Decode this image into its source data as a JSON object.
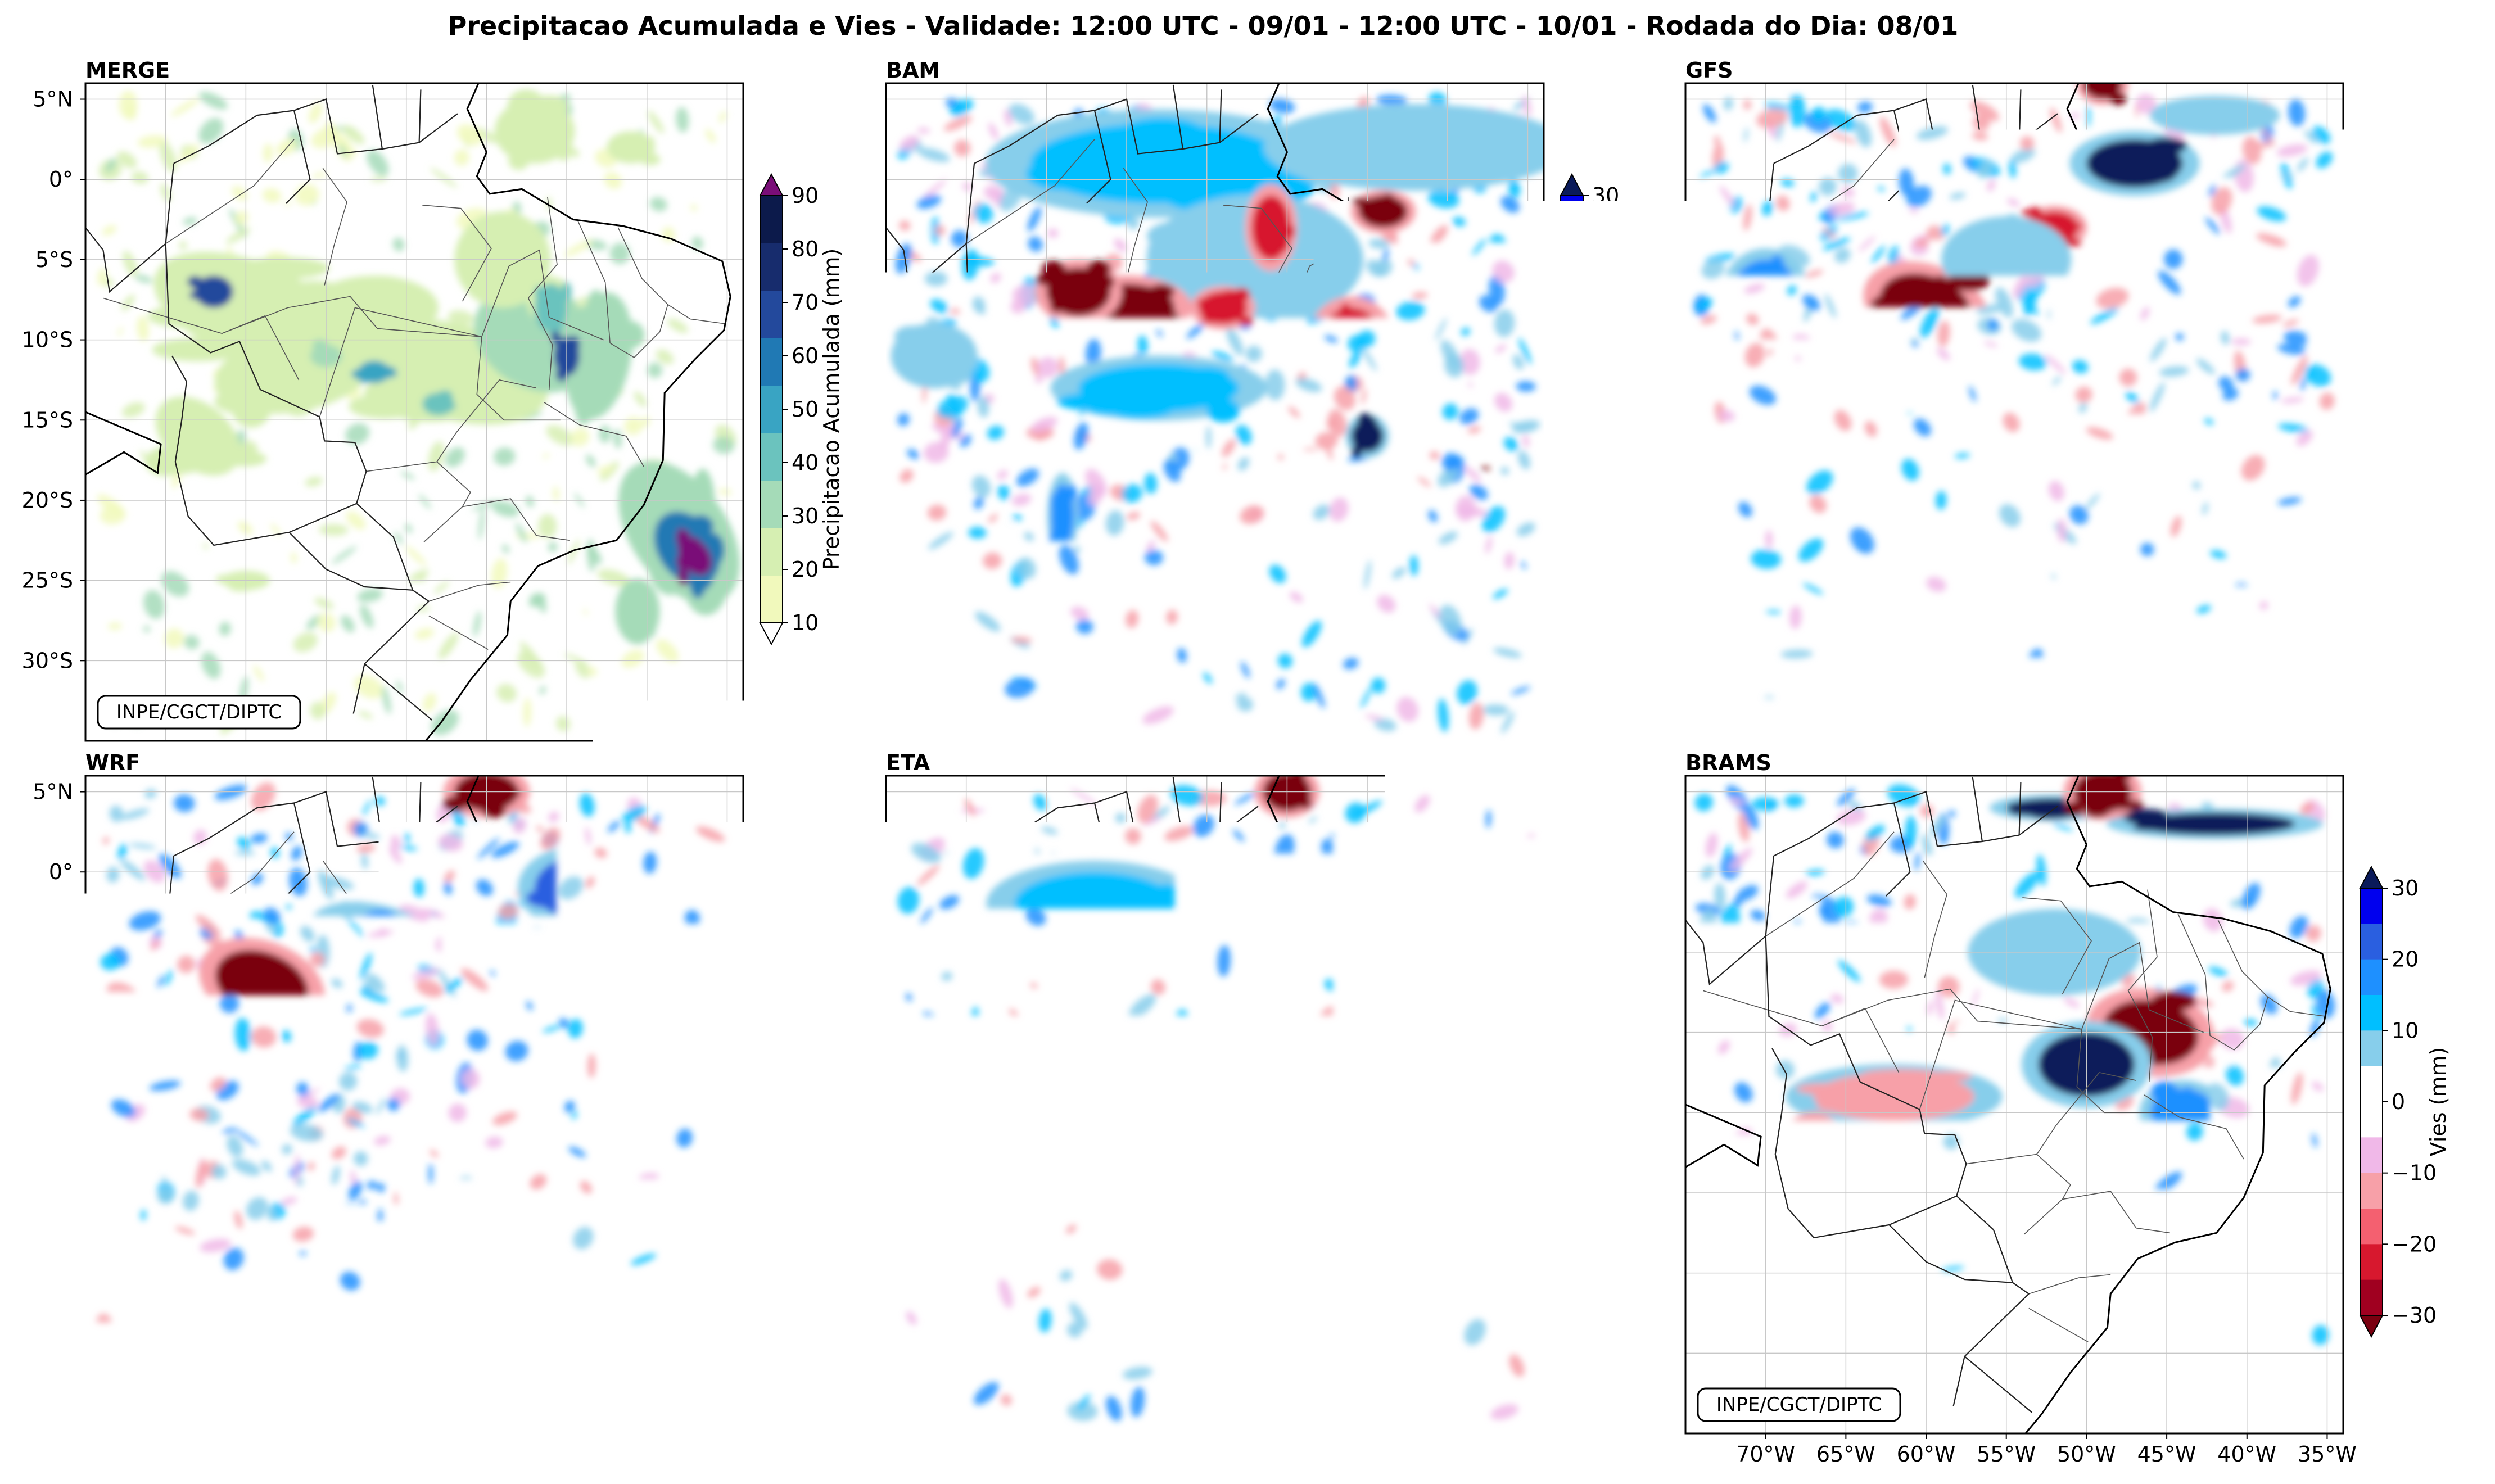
{
  "figure": {
    "title": "Precipitacao Acumulada e Vies - Validade: 12:00 UTC - 09/01 - 12:00 UTC - 10/01 - Rodada do Dia: 08/01",
    "credit": "INPE/CGCT/DIPTC"
  },
  "axes": {
    "lat_ticks": [
      "5°N",
      "0°",
      "5°S",
      "10°S",
      "15°S",
      "20°S",
      "25°S",
      "30°S"
    ],
    "lon_ticks": [
      "70°W",
      "65°W",
      "60°W",
      "55°W",
      "50°W",
      "45°W",
      "40°W",
      "35°W"
    ],
    "lat_range_deg": [
      -35,
      6
    ],
    "lon_range_deg": [
      -75,
      -34
    ]
  },
  "panels": [
    {
      "id": "merge",
      "label": "MERGE",
      "kind": "precip"
    },
    {
      "id": "bam",
      "label": "BAM",
      "kind": "bias"
    },
    {
      "id": "gfs",
      "label": "GFS",
      "kind": "bias"
    },
    {
      "id": "wrf",
      "label": "WRF",
      "kind": "bias"
    },
    {
      "id": "eta",
      "label": "ETA",
      "kind": "bias"
    },
    {
      "id": "brams",
      "label": "BRAMS",
      "kind": "bias"
    }
  ],
  "colorbars": {
    "precip": {
      "label": "Precipitacao Acumulada (mm)",
      "ticks": [
        "10",
        "20",
        "30",
        "40",
        "50",
        "60",
        "70",
        "80",
        "90"
      ],
      "colors": [
        "#f1f9bc",
        "#d6efb2",
        "#a5dbb8",
        "#6bc3be",
        "#39a4c3",
        "#2079b4",
        "#23499c",
        "#172c6d",
        "#0c1a4b"
      ],
      "over_color": "#7a0e78",
      "under_color": "#ffffff"
    },
    "bias": {
      "label": "Vies (mm)",
      "ticks": [
        "30",
        "20",
        "10",
        "0",
        "−10",
        "−20",
        "−30"
      ],
      "colors": [
        "#0000ee",
        "#2a5fe0",
        "#1e90ff",
        "#00bfff",
        "#87ceeb",
        "#ffffff",
        "#ffffff",
        "#f0b8e8",
        "#f7a0a8",
        "#f46070",
        "#d7182e",
        "#a00020"
      ],
      "over_color": "#0a1a5a",
      "under_color": "#7a0010"
    }
  },
  "palette": {
    "dark_red": "#7a0010",
    "red": "#d7182e",
    "pink": "#f7a0a8",
    "light_pink": "#f0b8e8",
    "light_blue": "#87ceeb",
    "sky_blue": "#00bfff",
    "blue": "#1e90ff",
    "royal": "#2a5fe0",
    "navy": "#0a1a5a"
  }
}
